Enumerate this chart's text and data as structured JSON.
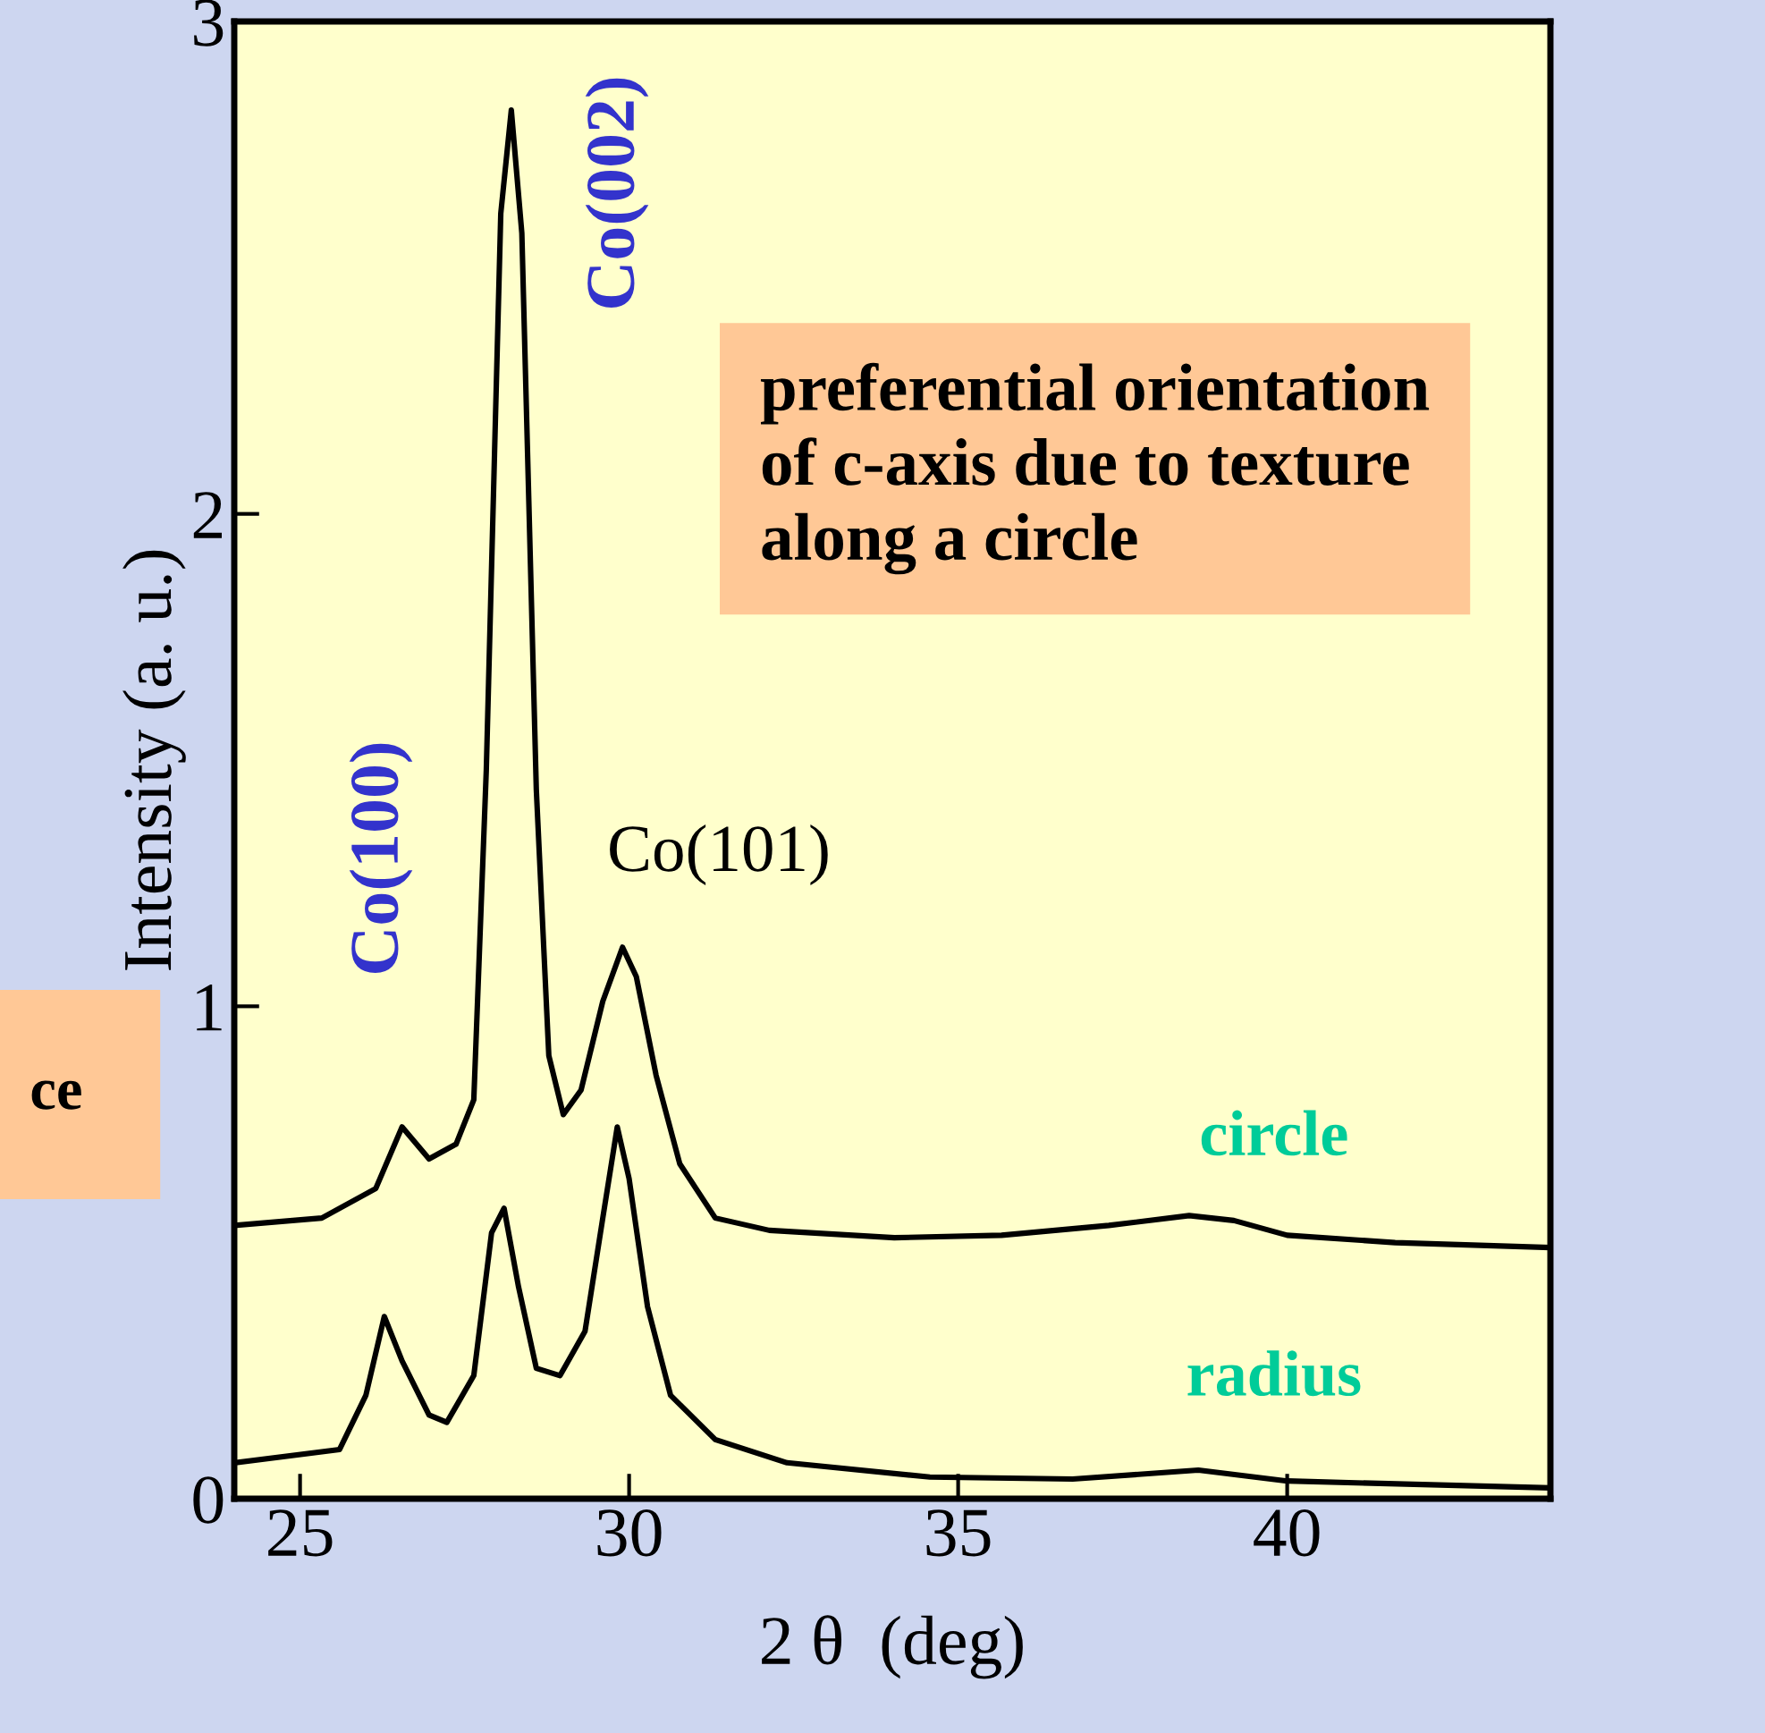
{
  "chart_data": {
    "type": "line",
    "xlabel": "2 θ  (deg)",
    "ylabel": "Intensity (a. u.)",
    "xlim": [
      24,
      44
    ],
    "xticks": [
      25,
      30,
      35,
      40
    ],
    "ylim": [
      0,
      3
    ],
    "yticks": [
      0,
      1,
      2,
      3
    ],
    "grid": false,
    "marker": "none",
    "line_style": "solid",
    "tick_labels": true,
    "series": [
      {
        "name": "circle",
        "color": "#000000",
        "x": [
          24,
          25.33,
          26.15,
          26.55,
          26.96,
          27.37,
          27.64,
          27.83,
          28.05,
          28.21,
          28.37,
          28.59,
          28.78,
          29.0,
          29.27,
          29.6,
          29.9,
          30.11,
          30.41,
          30.77,
          31.31,
          32.13,
          34.03,
          35.66,
          37.29,
          38.51,
          39.19,
          40.0,
          41.64,
          44
        ],
        "values": [
          0.555,
          0.57,
          0.63,
          0.755,
          0.69,
          0.72,
          0.81,
          1.48,
          2.61,
          2.82,
          2.57,
          1.44,
          0.9,
          0.78,
          0.83,
          1.01,
          1.12,
          1.06,
          0.86,
          0.68,
          0.57,
          0.545,
          0.53,
          0.535,
          0.555,
          0.575,
          0.565,
          0.535,
          0.52,
          0.51
        ]
      },
      {
        "name": "radius",
        "color": "#000000",
        "x": [
          24,
          25.6,
          26.0,
          26.28,
          26.55,
          26.96,
          27.23,
          27.64,
          27.91,
          28.1,
          28.32,
          28.59,
          28.95,
          29.33,
          29.6,
          29.82,
          30.0,
          30.28,
          30.63,
          31.31,
          32.4,
          34.57,
          36.74,
          38.65,
          40.0,
          44
        ],
        "values": [
          0.073,
          0.1,
          0.21,
          0.37,
          0.28,
          0.17,
          0.155,
          0.25,
          0.54,
          0.59,
          0.43,
          0.265,
          0.25,
          0.34,
          0.57,
          0.755,
          0.65,
          0.39,
          0.21,
          0.12,
          0.073,
          0.044,
          0.04,
          0.058,
          0.036,
          0.022
        ]
      }
    ],
    "annotations": [
      "Co(100)",
      "Co(002)",
      "Co(101)",
      "preferential orientation\nof c-axis due to texture\nalong a circle",
      "ce"
    ]
  }
}
